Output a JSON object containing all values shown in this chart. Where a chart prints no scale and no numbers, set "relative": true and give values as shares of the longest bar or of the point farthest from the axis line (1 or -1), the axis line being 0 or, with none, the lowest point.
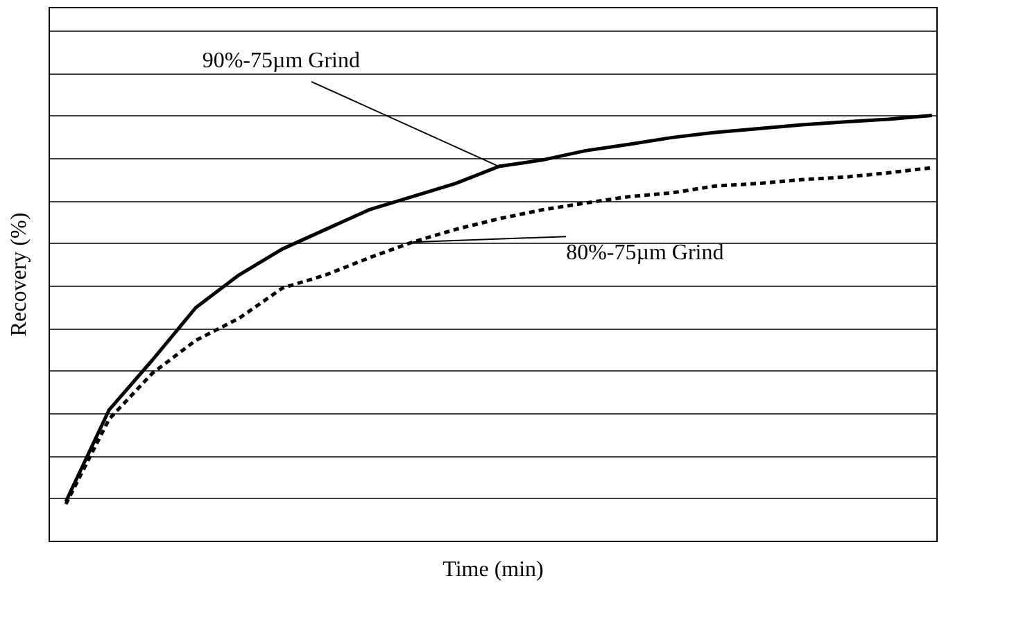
{
  "chart_data": {
    "type": "line",
    "relative": true,
    "xlabel": "Time (min)",
    "ylabel": "Recovery (%)",
    "categories": [
      null,
      null,
      null,
      null,
      null,
      null,
      null,
      null,
      null,
      null,
      null,
      null,
      null,
      null,
      null,
      null,
      null,
      null,
      null,
      null,
      null
    ],
    "series": [
      {
        "name": "90%-75µm Grind",
        "color": "#000000",
        "line_style": "solid",
        "values": [
          0.092,
          0.308,
          0.425,
          0.548,
          0.625,
          0.686,
          0.732,
          0.778,
          0.809,
          0.84,
          0.88,
          0.895,
          0.917,
          0.932,
          0.948,
          0.96,
          0.969,
          0.978,
          0.985,
          0.991,
          1.0
        ]
      },
      {
        "name": "80%-75µm Grind",
        "color": "#000000",
        "line_style": "dashed",
        "values": [
          0.086,
          0.286,
          0.394,
          0.471,
          0.523,
          0.594,
          0.625,
          0.665,
          0.702,
          0.732,
          0.757,
          0.778,
          0.794,
          0.809,
          0.818,
          0.834,
          0.84,
          0.849,
          0.855,
          0.865,
          0.877
        ]
      }
    ],
    "grid": "y",
    "legend": false,
    "tick_labels": false,
    "marker": "none"
  }
}
